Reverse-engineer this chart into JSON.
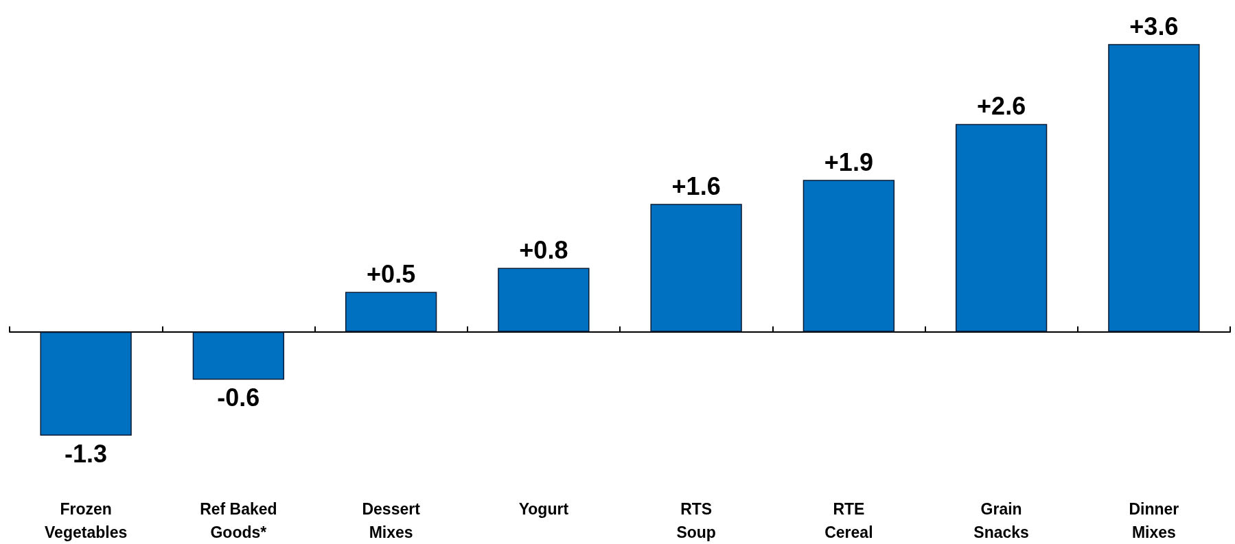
{
  "chart_data": {
    "type": "bar",
    "categories": [
      "Frozen\nVegetables",
      "Ref Baked\nGoods*",
      "Dessert\nMixes",
      "Yogurt",
      "RTS\nSoup",
      "RTE\nCereal",
      "Grain\nSnacks",
      "Dinner\nMixes"
    ],
    "values": [
      -1.3,
      -0.6,
      0.5,
      0.8,
      1.6,
      1.9,
      2.6,
      3.6
    ],
    "value_labels": [
      "-1.3",
      "-0.6",
      "+0.5",
      "+0.8",
      "+1.6",
      "+1.9",
      "+2.6",
      "+3.6"
    ],
    "color": "#0070c0"
  }
}
